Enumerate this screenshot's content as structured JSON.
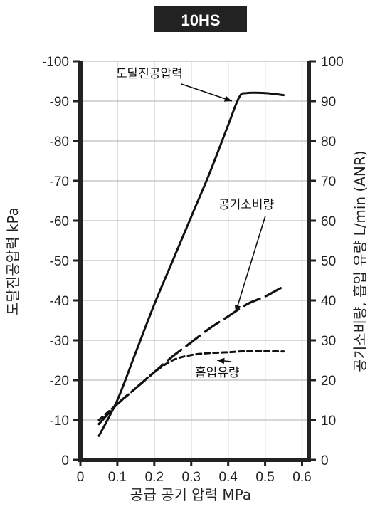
{
  "chart_data": {
    "type": "line",
    "title": "10HS",
    "xlabel": "공급 공기 압력 MPa",
    "ylabel_left": "도달진공압력 kPa",
    "ylabel_right": "공기소비량, 흡입 유량 L/min (ANR)",
    "xlim": [
      0,
      0.6
    ],
    "ylim_left": [
      0,
      -100
    ],
    "ylim_right": [
      0,
      100
    ],
    "x_ticks": [
      "0",
      "0.1",
      "0.2",
      "0.3",
      "0.4",
      "0.5",
      "0.6"
    ],
    "y_ticks_left": [
      "0",
      "-10",
      "-20",
      "-30",
      "-40",
      "-50",
      "-60",
      "-70",
      "-80",
      "-90",
      "-100"
    ],
    "y_ticks_right": [
      "0",
      "10",
      "20",
      "30",
      "40",
      "50",
      "60",
      "70",
      "80",
      "90",
      "100"
    ],
    "grid": true,
    "series": [
      {
        "name": "도달진공압력",
        "axis": "left",
        "style": "solid",
        "x": [
          0.05,
          0.1,
          0.15,
          0.2,
          0.25,
          0.3,
          0.35,
          0.4,
          0.43,
          0.45,
          0.5,
          0.55
        ],
        "y": [
          -6,
          -15,
          -27,
          -39,
          -50,
          -61,
          -72,
          -84,
          -91,
          -92,
          -92,
          -91.5
        ]
      },
      {
        "name": "공기소비량",
        "axis": "right",
        "style": "dashed",
        "x": [
          0.05,
          0.1,
          0.15,
          0.2,
          0.25,
          0.3,
          0.35,
          0.4,
          0.45,
          0.5,
          0.55
        ],
        "y": [
          9,
          14,
          18,
          22,
          26,
          29.5,
          33,
          36,
          39,
          41,
          43.5
        ]
      },
      {
        "name": "흡입유량",
        "axis": "right",
        "style": "dotted",
        "x": [
          0.05,
          0.1,
          0.15,
          0.2,
          0.25,
          0.3,
          0.35,
          0.4,
          0.45,
          0.5,
          0.55
        ],
        "y": [
          10,
          14,
          18,
          22,
          25,
          26.3,
          26.8,
          27,
          27.3,
          27.3,
          27.2
        ]
      }
    ],
    "annotations": [
      {
        "text": "도달진공압력",
        "series": 0,
        "at_x": 0.41,
        "at_y": 90
      },
      {
        "text": "공기소비량",
        "series": 1,
        "at_x": 0.42,
        "at_y": 37
      },
      {
        "text": "흡입유량",
        "series": 2,
        "at_x": 0.37,
        "at_y": 25
      }
    ]
  }
}
